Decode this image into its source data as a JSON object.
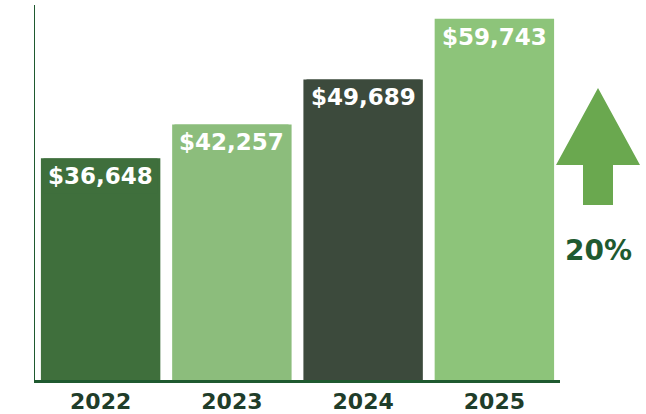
{
  "chart_data": {
    "type": "bar",
    "categories": [
      "2022",
      "2023",
      "2024",
      "2025"
    ],
    "values": [
      36648,
      42257,
      49689,
      59743
    ],
    "value_labels": [
      "$36,648",
      "$42,257",
      "$49,689",
      "$59,743"
    ],
    "colors": [
      "#3f6f3c",
      "#8cbd7c",
      "#3c4a3c",
      "#8dc47a"
    ],
    "ylim": [
      0,
      62000
    ],
    "yticks": [],
    "grid": false,
    "data_labels": true,
    "tick_labels": "x",
    "annotations": [
      "20%"
    ]
  }
}
